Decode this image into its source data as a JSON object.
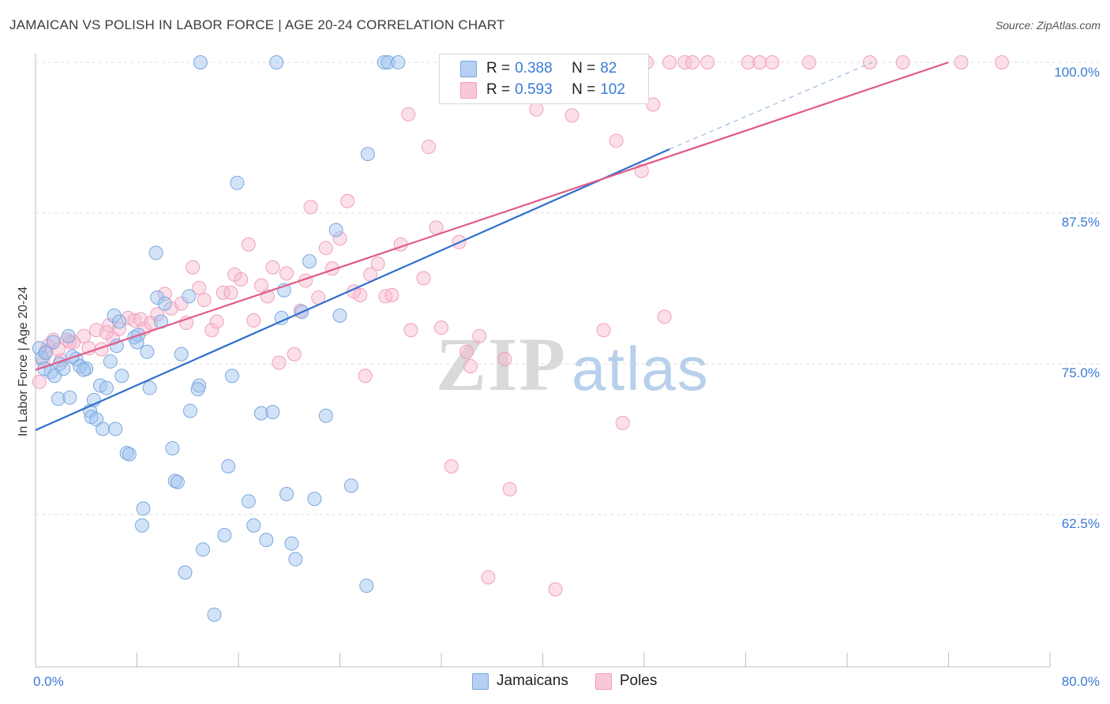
{
  "header": {
    "title": "JAMAICAN VS POLISH IN LABOR FORCE | AGE 20-24 CORRELATION CHART",
    "source": "Source: ZipAtlas.com"
  },
  "legend": {
    "r_label": "R =",
    "n_label": "N =",
    "rows": [
      {
        "r": "0.388",
        "n": "82",
        "color": "#7aa8e0"
      },
      {
        "r": "0.593",
        "n": "102",
        "color": "#f0a0bc"
      }
    ]
  },
  "watermark": {
    "zip": "ZIP",
    "atlas": "atlas"
  },
  "chart_data": {
    "type": "scatter",
    "title": "JAMAICAN VS POLISH IN LABOR FORCE | AGE 20-24 CORRELATION CHART",
    "xlabel": "",
    "ylabel": "In Labor Force | Age 20-24",
    "xlim": [
      0,
      80
    ],
    "ylim": [
      51,
      101
    ],
    "x_tick_labels": [
      "0.0%",
      "80.0%"
    ],
    "y_ticks": [
      62.5,
      75.0,
      87.5,
      100.0
    ],
    "y_tick_labels": [
      "62.5%",
      "75.0%",
      "87.5%",
      "100.0%"
    ],
    "grid": true,
    "legend_position": "top-center",
    "colors": {
      "jamaicans": "#5b8fd6",
      "poles": "#e87a9e",
      "jamaicans_line": "#2f6fcf",
      "poles_line": "#e05a88"
    },
    "series": [
      {
        "name": "Jamaicans",
        "r": 0.388,
        "n": 82,
        "trend": {
          "x0": 0,
          "y0": 69.5,
          "x1": 50,
          "y1": 92.8,
          "dashed_to_x": 66,
          "dashed_to_y": 100
        },
        "points": [
          [
            0.3,
            76.3
          ],
          [
            0.5,
            75.5
          ],
          [
            0.8,
            75.9
          ],
          [
            1.2,
            74.3
          ],
          [
            1.5,
            74.0
          ],
          [
            1.9,
            75.0
          ],
          [
            2.2,
            74.6
          ],
          [
            1.8,
            72.1
          ],
          [
            2.7,
            72.2
          ],
          [
            2.6,
            77.3
          ],
          [
            3.2,
            75.4
          ],
          [
            3.5,
            74.8
          ],
          [
            4.0,
            74.6
          ],
          [
            4.3,
            71.1
          ],
          [
            4.4,
            70.6
          ],
          [
            4.6,
            72.0
          ],
          [
            4.8,
            70.4
          ],
          [
            5.1,
            73.2
          ],
          [
            5.3,
            69.6
          ],
          [
            5.6,
            73.0
          ],
          [
            5.9,
            75.2
          ],
          [
            6.2,
            79.0
          ],
          [
            6.4,
            76.5
          ],
          [
            6.6,
            78.5
          ],
          [
            6.8,
            74.0
          ],
          [
            7.2,
            67.6
          ],
          [
            7.4,
            67.5
          ],
          [
            7.8,
            77.2
          ],
          [
            8.1,
            77.4
          ],
          [
            8.5,
            63.0
          ],
          [
            8.4,
            61.6
          ],
          [
            8.8,
            76.0
          ],
          [
            9.0,
            73.0
          ],
          [
            9.5,
            84.2
          ],
          [
            9.6,
            80.5
          ],
          [
            10.2,
            80.0
          ],
          [
            10.8,
            68.0
          ],
          [
            11.0,
            65.3
          ],
          [
            11.2,
            65.2
          ],
          [
            11.5,
            75.8
          ],
          [
            11.8,
            57.7
          ],
          [
            12.1,
            80.6
          ],
          [
            12.2,
            71.1
          ],
          [
            12.9,
            73.2
          ],
          [
            13.2,
            59.6
          ],
          [
            14.1,
            54.2
          ],
          [
            14.9,
            60.8
          ],
          [
            15.2,
            66.5
          ],
          [
            15.5,
            74.0
          ],
          [
            15.9,
            90.0
          ],
          [
            17.2,
            61.6
          ],
          [
            17.8,
            70.9
          ],
          [
            18.2,
            60.4
          ],
          [
            18.7,
            71.0
          ],
          [
            19.4,
            78.8
          ],
          [
            19.6,
            81.1
          ],
          [
            19.8,
            64.2
          ],
          [
            20.2,
            60.1
          ],
          [
            20.5,
            58.8
          ],
          [
            21.0,
            79.3
          ],
          [
            21.6,
            83.5
          ],
          [
            22.9,
            70.7
          ],
          [
            23.7,
            86.1
          ],
          [
            24.0,
            79.0
          ],
          [
            26.1,
            56.6
          ],
          [
            26.2,
            92.4
          ],
          [
            13.0,
            100
          ],
          [
            19.0,
            100
          ],
          [
            27.5,
            100
          ],
          [
            27.8,
            100
          ],
          [
            28.6,
            100
          ],
          [
            0.7,
            74.6
          ],
          [
            1.4,
            76.8
          ],
          [
            2.9,
            75.6
          ],
          [
            3.8,
            74.5
          ],
          [
            6.3,
            69.6
          ],
          [
            8.0,
            76.8
          ],
          [
            9.9,
            78.5
          ],
          [
            12.8,
            72.9
          ],
          [
            16.8,
            63.6
          ],
          [
            22.0,
            63.8
          ],
          [
            24.9,
            64.9
          ]
        ]
      },
      {
        "name": "Poles",
        "r": 0.593,
        "n": 102,
        "trend": {
          "x0": 0,
          "y0": 74.5,
          "x1": 72,
          "y1": 100
        },
        "points": [
          [
            0.3,
            73.5
          ],
          [
            0.6,
            75.2
          ],
          [
            1.0,
            76.5
          ],
          [
            1.4,
            77.0
          ],
          [
            2.0,
            75.3
          ],
          [
            2.5,
            77.0
          ],
          [
            3.0,
            76.8
          ],
          [
            3.8,
            77.3
          ],
          [
            4.2,
            76.3
          ],
          [
            4.8,
            77.8
          ],
          [
            5.2,
            76.2
          ],
          [
            5.8,
            78.2
          ],
          [
            6.1,
            77.1
          ],
          [
            6.6,
            77.9
          ],
          [
            7.3,
            78.8
          ],
          [
            7.8,
            78.6
          ],
          [
            8.3,
            78.7
          ],
          [
            8.6,
            77.9
          ],
          [
            9.1,
            78.4
          ],
          [
            9.6,
            79.1
          ],
          [
            10.2,
            80.8
          ],
          [
            10.7,
            79.6
          ],
          [
            11.5,
            80.0
          ],
          [
            11.9,
            78.4
          ],
          [
            12.4,
            83.0
          ],
          [
            12.9,
            81.3
          ],
          [
            13.3,
            80.3
          ],
          [
            13.9,
            77.8
          ],
          [
            14.3,
            78.5
          ],
          [
            14.8,
            80.9
          ],
          [
            15.4,
            80.9
          ],
          [
            15.7,
            82.4
          ],
          [
            16.2,
            82.0
          ],
          [
            16.8,
            84.9
          ],
          [
            17.2,
            78.6
          ],
          [
            17.8,
            81.5
          ],
          [
            18.3,
            80.6
          ],
          [
            18.7,
            83.0
          ],
          [
            19.2,
            75.1
          ],
          [
            19.8,
            82.5
          ],
          [
            20.4,
            75.8
          ],
          [
            20.9,
            79.4
          ],
          [
            21.3,
            81.9
          ],
          [
            21.7,
            88.0
          ],
          [
            22.3,
            80.5
          ],
          [
            22.9,
            84.6
          ],
          [
            23.4,
            82.9
          ],
          [
            24.0,
            85.4
          ],
          [
            24.6,
            88.5
          ],
          [
            25.1,
            81.0
          ],
          [
            25.6,
            80.7
          ],
          [
            26.0,
            74.0
          ],
          [
            26.4,
            82.4
          ],
          [
            27.0,
            83.3
          ],
          [
            27.6,
            80.6
          ],
          [
            28.1,
            80.7
          ],
          [
            28.8,
            84.9
          ],
          [
            29.4,
            95.7
          ],
          [
            29.6,
            77.8
          ],
          [
            30.6,
            82.1
          ],
          [
            31.0,
            93.0
          ],
          [
            31.6,
            86.3
          ],
          [
            32.0,
            78.0
          ],
          [
            32.8,
            66.5
          ],
          [
            33.4,
            85.1
          ],
          [
            34.0,
            76.0
          ],
          [
            34.3,
            74.8
          ],
          [
            35.0,
            77.3
          ],
          [
            35.7,
            57.3
          ],
          [
            37.0,
            75.4
          ],
          [
            37.4,
            64.6
          ],
          [
            38.4,
            100
          ],
          [
            39.5,
            96.1
          ],
          [
            40.0,
            100
          ],
          [
            41.0,
            56.3
          ],
          [
            42.3,
            95.6
          ],
          [
            43.1,
            100
          ],
          [
            43.5,
            100
          ],
          [
            44.8,
            77.8
          ],
          [
            45.8,
            93.5
          ],
          [
            46.3,
            70.1
          ],
          [
            47.3,
            100
          ],
          [
            47.8,
            91.0
          ],
          [
            48.2,
            100
          ],
          [
            48.7,
            96.5
          ],
          [
            49.6,
            78.9
          ],
          [
            50.0,
            100
          ],
          [
            51.2,
            100
          ],
          [
            51.8,
            100
          ],
          [
            53.0,
            100
          ],
          [
            56.2,
            100
          ],
          [
            57.1,
            100
          ],
          [
            58.1,
            100
          ],
          [
            61.0,
            100
          ],
          [
            65.8,
            100
          ],
          [
            68.4,
            100
          ],
          [
            73.0,
            100
          ],
          [
            76.2,
            100
          ],
          [
            0.8,
            76.0
          ],
          [
            1.8,
            76.2
          ],
          [
            2.7,
            76.8
          ],
          [
            5.6,
            77.6
          ]
        ]
      }
    ]
  }
}
